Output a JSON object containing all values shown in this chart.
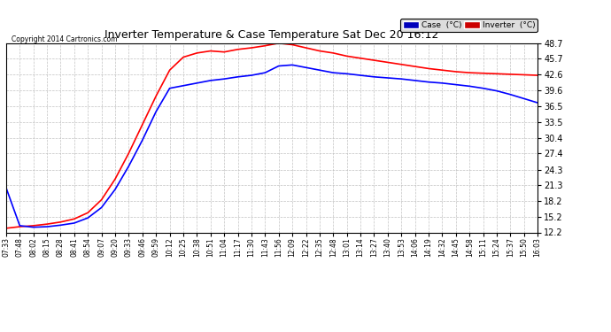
{
  "title": "Inverter Temperature & Case Temperature Sat Dec 20 16:12",
  "copyright": "Copyright 2014 Cartronics.com",
  "background_color": "#ffffff",
  "plot_bg_color": "#ffffff",
  "grid_color": "#bbbbbb",
  "ylim": [
    12.2,
    48.7
  ],
  "yticks": [
    12.2,
    15.2,
    18.2,
    21.3,
    24.3,
    27.4,
    30.4,
    33.5,
    36.5,
    39.6,
    42.6,
    45.7,
    48.7
  ],
  "xtick_labels": [
    "07:33",
    "07:48",
    "08:02",
    "08:15",
    "08:28",
    "08:41",
    "08:54",
    "09:07",
    "09:20",
    "09:33",
    "09:46",
    "09:59",
    "10:12",
    "10:25",
    "10:38",
    "10:51",
    "11:04",
    "11:17",
    "11:30",
    "11:43",
    "11:56",
    "12:09",
    "12:22",
    "12:35",
    "12:48",
    "13:01",
    "13:14",
    "13:27",
    "13:40",
    "13:53",
    "14:06",
    "14:19",
    "14:32",
    "14:45",
    "14:58",
    "15:11",
    "15:24",
    "15:37",
    "15:50",
    "16:03"
  ],
  "legend_case_label": "Case  (°C)",
  "legend_inverter_label": "Inverter  (°C)",
  "case_color": "#0000ff",
  "inverter_color": "#ff0000",
  "case_legend_bg": "#0000bb",
  "inverter_legend_bg": "#cc0000",
  "inverter_data": [
    13.0,
    13.3,
    13.5,
    13.8,
    14.2,
    14.8,
    16.0,
    18.5,
    22.5,
    27.5,
    33.0,
    38.5,
    43.5,
    46.0,
    46.8,
    47.2,
    47.0,
    47.5,
    47.8,
    48.2,
    48.7,
    48.4,
    47.8,
    47.2,
    46.8,
    46.2,
    45.8,
    45.4,
    45.0,
    44.6,
    44.2,
    43.8,
    43.5,
    43.2,
    43.0,
    42.9,
    42.8,
    42.7,
    42.6,
    42.5
  ],
  "case_data": [
    20.8,
    13.5,
    13.2,
    13.3,
    13.6,
    14.0,
    15.0,
    17.0,
    20.5,
    25.0,
    30.0,
    35.5,
    40.0,
    40.5,
    41.0,
    41.5,
    41.8,
    42.2,
    42.5,
    43.0,
    44.3,
    44.5,
    44.0,
    43.5,
    43.0,
    42.8,
    42.5,
    42.2,
    42.0,
    41.8,
    41.5,
    41.2,
    41.0,
    40.7,
    40.4,
    40.0,
    39.5,
    38.8,
    38.0,
    37.2
  ]
}
